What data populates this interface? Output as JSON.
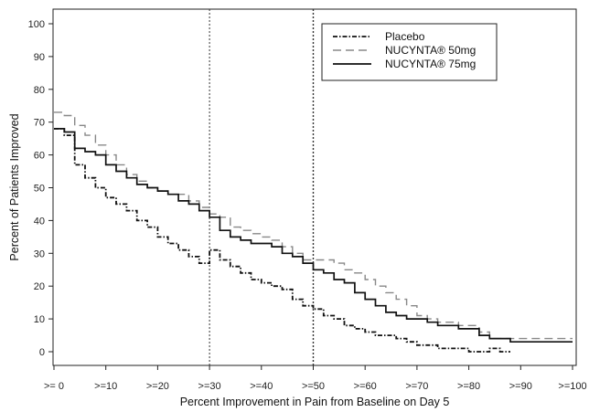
{
  "chart_data": {
    "type": "line",
    "title": "",
    "xlabel": "Percent Improvement in Pain from Baseline on Day 5",
    "ylabel": "Percent of Patients Improved",
    "x_categories": [
      ">= 0",
      ">=10",
      ">=20",
      ">=30",
      ">=40",
      ">=50",
      ">=60",
      ">=70",
      ">=80",
      ">=90",
      ">=100"
    ],
    "xlim": [
      0,
      100
    ],
    "ylim": [
      -3,
      103
    ],
    "yticks": [
      0,
      10,
      20,
      30,
      40,
      50,
      60,
      70,
      80,
      90,
      100
    ],
    "reference_lines_x": [
      30,
      50
    ],
    "legend_position": "top-right",
    "series": [
      {
        "name": "Placebo",
        "style": "dash-dot",
        "color": "#111111",
        "x": [
          0,
          2,
          4,
          6,
          8,
          10,
          12,
          14,
          16,
          18,
          20,
          22,
          24,
          26,
          28,
          30,
          32,
          34,
          36,
          38,
          40,
          42,
          44,
          46,
          48,
          50,
          52,
          54,
          56,
          58,
          60,
          62,
          64,
          66,
          68,
          70,
          72,
          74,
          76,
          78,
          80,
          82,
          84,
          86,
          88
        ],
        "values": [
          68,
          66,
          57,
          53,
          50,
          47,
          45,
          43,
          40,
          38,
          35,
          33,
          31,
          29,
          27,
          31,
          28,
          26,
          24,
          22,
          21,
          20,
          19,
          16,
          14,
          13,
          11,
          10,
          8,
          7,
          6,
          5,
          5,
          4,
          3,
          2,
          2,
          1,
          1,
          1,
          0,
          0,
          1,
          0,
          0
        ]
      },
      {
        "name": "NUCYNTA® 50mg",
        "style": "dashed",
        "color": "#888888",
        "x": [
          0,
          2,
          4,
          6,
          8,
          10,
          12,
          14,
          16,
          18,
          20,
          22,
          24,
          26,
          28,
          30,
          32,
          34,
          36,
          38,
          40,
          42,
          44,
          46,
          48,
          50,
          52,
          54,
          56,
          58,
          60,
          62,
          64,
          66,
          68,
          70,
          72,
          74,
          76,
          78,
          80,
          82,
          84,
          86,
          88,
          90,
          92,
          94,
          96,
          98,
          100
        ],
        "values": [
          73,
          72,
          69,
          66,
          63,
          60,
          57,
          54,
          52,
          50,
          49,
          48,
          48,
          46,
          44,
          42,
          41,
          38,
          37,
          36,
          35,
          34,
          32,
          30,
          28,
          28,
          28,
          27,
          25,
          24,
          22,
          20,
          18,
          16,
          14,
          11,
          10,
          9,
          9,
          8,
          8,
          6,
          4,
          4,
          4,
          4,
          4,
          4,
          4,
          4,
          4
        ]
      },
      {
        "name": "NUCYNTA® 75mg",
        "style": "solid",
        "color": "#111111",
        "x": [
          0,
          2,
          4,
          6,
          8,
          10,
          12,
          14,
          16,
          18,
          20,
          22,
          24,
          26,
          28,
          30,
          32,
          34,
          36,
          38,
          40,
          42,
          44,
          46,
          48,
          50,
          52,
          54,
          56,
          58,
          60,
          62,
          64,
          66,
          68,
          70,
          72,
          74,
          76,
          78,
          80,
          82,
          84,
          86,
          88,
          90,
          92,
          94,
          96,
          98,
          100
        ],
        "values": [
          68,
          67,
          62,
          61,
          60,
          57,
          55,
          53,
          51,
          50,
          49,
          48,
          46,
          45,
          43,
          41,
          37,
          35,
          34,
          33,
          33,
          32,
          30,
          29,
          27,
          25,
          24,
          22,
          21,
          18,
          16,
          14,
          12,
          11,
          10,
          10,
          9,
          8,
          8,
          7,
          7,
          5,
          4,
          4,
          3,
          3,
          3,
          3,
          3,
          3,
          3
        ]
      }
    ]
  }
}
